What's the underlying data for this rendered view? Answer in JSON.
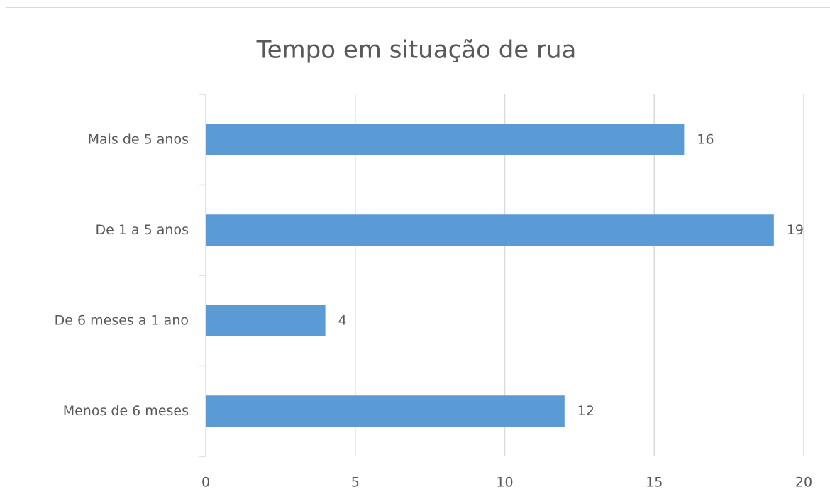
{
  "chart_data": {
    "type": "bar",
    "orientation": "horizontal",
    "title": "Tempo em situação de rua",
    "categories": [
      "Mais de 5 anos",
      "De 1 a 5 anos",
      "De 6 meses a 1 ano",
      "Menos de 6 meses"
    ],
    "values": [
      16,
      19,
      4,
      12
    ],
    "color": "#5b9bd5",
    "xlim": [
      0,
      20
    ],
    "xticks": [
      0,
      5,
      10,
      15,
      20
    ],
    "grid": true
  }
}
